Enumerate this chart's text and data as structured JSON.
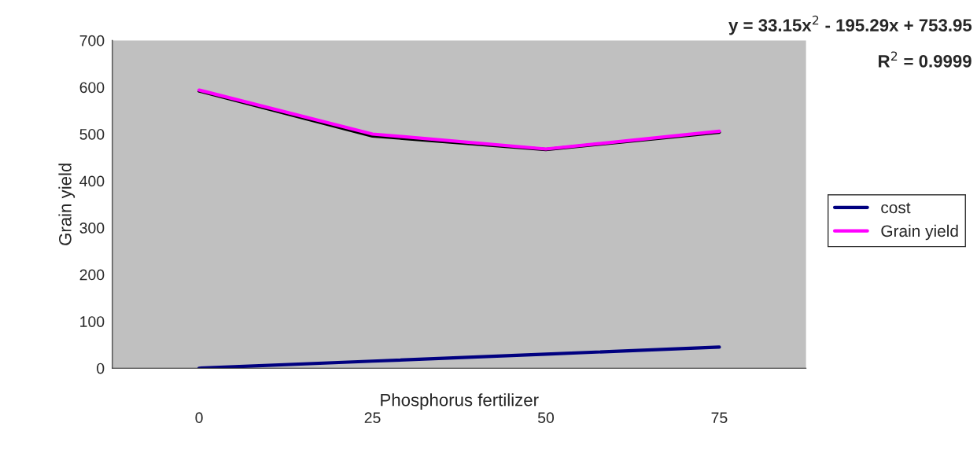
{
  "chart_data": {
    "type": "line",
    "xlabel": "Phosphorus fertilizer",
    "ylabel": "Grain yield",
    "categories": [
      "0",
      "25",
      "50",
      "75"
    ],
    "series": [
      {
        "type": "line",
        "color": "#000000",
        "values": [
          592,
          496,
          467,
          504
        ]
      },
      {
        "name": "cost",
        "color": "#000080",
        "values": [
          0,
          15,
          30,
          45
        ]
      },
      {
        "name": "Grain yield",
        "color": "#ff00ff",
        "values": [
          594,
          500,
          468,
          506
        ]
      }
    ],
    "ylim": [
      0,
      700
    ],
    "yticks": [
      0,
      100,
      200,
      300,
      400,
      500,
      600,
      700
    ],
    "annotations": [
      "y = 33.15x$^{2}$ - 195.29x + 753.95",
      "R$^{2}$ = 0.9999"
    ],
    "grid": false,
    "legend": "right"
  }
}
